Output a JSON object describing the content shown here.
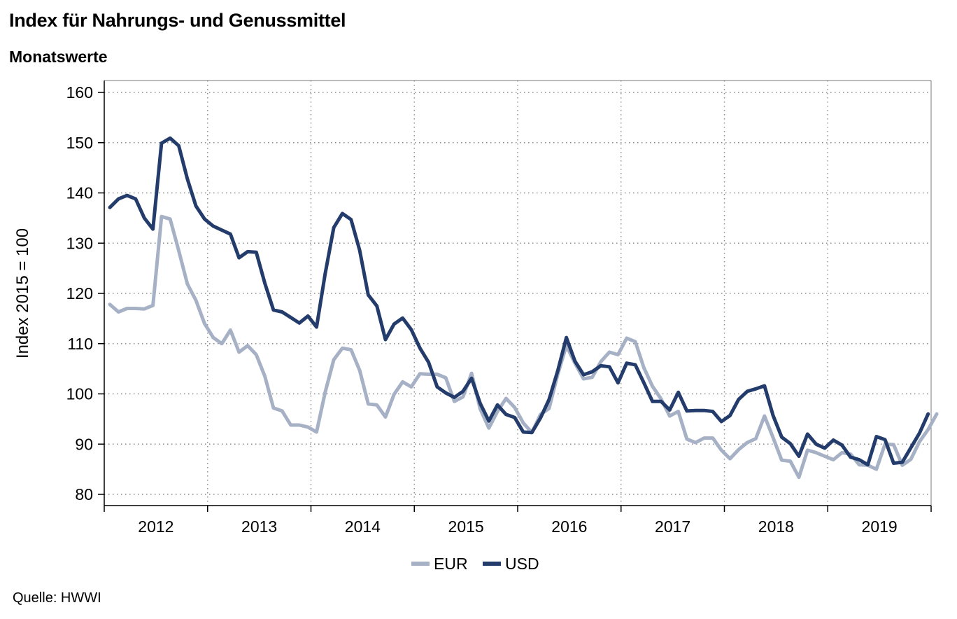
{
  "header": {
    "title": "Index für Nahrungs- und Genussmittel",
    "subtitle": "Monatswerte"
  },
  "footer": {
    "source": "Quelle: HWWI"
  },
  "colors": {
    "eur": "#a6b1c6",
    "usd": "#233c6b",
    "grid": "#8a8a8a",
    "axis": "#7a7a7a"
  },
  "chart_data": {
    "type": "line",
    "ylabel": "Index 2015 = 100",
    "xlabel": "",
    "ylim": [
      80,
      160
    ],
    "yticks": [
      80,
      90,
      100,
      110,
      120,
      130,
      140,
      150,
      160
    ],
    "xlim": [
      "2012-01",
      "2019-12"
    ],
    "years": [
      "2012",
      "2013",
      "2014",
      "2015",
      "2016",
      "2017",
      "2018",
      "2019"
    ],
    "grid": true,
    "legend_position": "bottom-center",
    "start_month": "2012-01",
    "series": [
      {
        "name": "EUR",
        "color": "#a6b1c6",
        "values": [
          117.8,
          116.3,
          117.0,
          117.0,
          116.9,
          117.6,
          135.3,
          134.8,
          128.5,
          121.9,
          118.6,
          114.0,
          111.2,
          110.0,
          112.7,
          108.3,
          109.6,
          107.8,
          103.5,
          97.2,
          96.6,
          93.8,
          93.8,
          93.4,
          92.4,
          100.3,
          106.8,
          109.1,
          108.8,
          104.7,
          98.0,
          97.8,
          95.4,
          99.9,
          102.4,
          101.4,
          104.0,
          103.9,
          103.9,
          103.2,
          98.5,
          99.4,
          104.1,
          97.0,
          93.2,
          96.5,
          99.1,
          97.3,
          94.2,
          92.3,
          95.9,
          97.1,
          103.9,
          109.6,
          106.1,
          103.0,
          103.3,
          106.4,
          108.3,
          107.8,
          111.1,
          110.4,
          105.2,
          101.5,
          99.0,
          95.6,
          96.5,
          91.0,
          90.3,
          91.2,
          91.2,
          88.8,
          87.1,
          88.9,
          90.3,
          91.1,
          95.6,
          91.3,
          86.8,
          86.6,
          83.4,
          88.8,
          88.3,
          87.6,
          86.9,
          88.3,
          88.0,
          85.9,
          85.8,
          85.0,
          90.0,
          89.9,
          85.8,
          87.0,
          90.5,
          92.9,
          96.0
        ]
      },
      {
        "name": "USD",
        "color": "#233c6b",
        "values": [
          137.1,
          138.8,
          139.5,
          138.8,
          135.0,
          132.8,
          149.9,
          150.9,
          149.4,
          142.8,
          137.4,
          134.8,
          133.4,
          132.6,
          131.8,
          127.1,
          128.3,
          128.2,
          122.0,
          116.7,
          116.3,
          115.2,
          114.1,
          115.5,
          113.3,
          123.9,
          133.1,
          135.9,
          134.7,
          128.6,
          119.7,
          117.5,
          110.8,
          113.9,
          115.1,
          112.8,
          109.1,
          106.3,
          101.4,
          100.2,
          99.3,
          100.5,
          103.1,
          98.1,
          94.6,
          97.8,
          95.9,
          95.3,
          92.4,
          92.3,
          95.2,
          98.9,
          104.6,
          111.2,
          106.5,
          103.8,
          104.4,
          105.6,
          105.4,
          102.2,
          106.1,
          105.8,
          102.2,
          98.5,
          98.5,
          96.8,
          100.3,
          96.6,
          96.7,
          96.7,
          96.5,
          94.5,
          95.7,
          98.9,
          100.5,
          101.0,
          101.6,
          95.7,
          91.4,
          90.1,
          87.6,
          92.0,
          90.0,
          89.2,
          90.8,
          89.8,
          87.4,
          86.9,
          85.9,
          91.5,
          90.9,
          86.2,
          86.4,
          89.3,
          92.2,
          96.0
        ]
      }
    ]
  }
}
